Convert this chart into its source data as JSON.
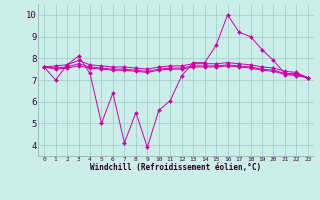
{
  "xlabel": "Windchill (Refroidissement éolien,°C)",
  "xlim": [
    -0.5,
    23.5
  ],
  "ylim": [
    3.5,
    10.5
  ],
  "yticks": [
    4,
    5,
    6,
    7,
    8,
    9,
    10
  ],
  "background_color": "#cceee8",
  "line_color": "#cc00aa",
  "line1_x": [
    0,
    1,
    2,
    3,
    4,
    5,
    6,
    7,
    8,
    9,
    10,
    11,
    12,
    13,
    14,
    15,
    16,
    17,
    18,
    19,
    20,
    21,
    22,
    23
  ],
  "line1_y": [
    7.6,
    7.0,
    7.7,
    8.1,
    7.3,
    5.0,
    6.4,
    4.1,
    5.5,
    3.9,
    5.6,
    6.05,
    7.2,
    7.8,
    7.8,
    8.6,
    10.0,
    9.2,
    9.0,
    8.4,
    7.9,
    7.3,
    7.3,
    7.1
  ],
  "line2_x": [
    0,
    1,
    2,
    3,
    4,
    5,
    6,
    7,
    8,
    9,
    10,
    11,
    12,
    13,
    14,
    15,
    16,
    17,
    18,
    19,
    20,
    21,
    22,
    23
  ],
  "line2_y": [
    7.6,
    7.65,
    7.7,
    7.9,
    7.7,
    7.65,
    7.6,
    7.6,
    7.55,
    7.5,
    7.6,
    7.65,
    7.65,
    7.75,
    7.75,
    7.75,
    7.8,
    7.75,
    7.7,
    7.6,
    7.55,
    7.4,
    7.35,
    7.1
  ],
  "line3_x": [
    0,
    1,
    2,
    3,
    4,
    5,
    6,
    7,
    8,
    9,
    10,
    11,
    12,
    13,
    14,
    15,
    16,
    17,
    18,
    19,
    20,
    21,
    22,
    23
  ],
  "line3_y": [
    7.6,
    7.55,
    7.6,
    7.75,
    7.6,
    7.55,
    7.5,
    7.5,
    7.45,
    7.4,
    7.5,
    7.55,
    7.55,
    7.65,
    7.65,
    7.65,
    7.7,
    7.65,
    7.6,
    7.5,
    7.45,
    7.3,
    7.25,
    7.1
  ],
  "line4_x": [
    0,
    1,
    2,
    3,
    4,
    5,
    6,
    7,
    8,
    9,
    10,
    11,
    12,
    13,
    14,
    15,
    16,
    17,
    18,
    19,
    20,
    21,
    22,
    23
  ],
  "line4_y": [
    7.6,
    7.5,
    7.55,
    7.65,
    7.55,
    7.5,
    7.45,
    7.45,
    7.4,
    7.35,
    7.45,
    7.5,
    7.5,
    7.6,
    7.6,
    7.6,
    7.65,
    7.6,
    7.55,
    7.45,
    7.4,
    7.25,
    7.2,
    7.1
  ],
  "xtick_labels": [
    "0",
    "1",
    "2",
    "3",
    "4",
    "5",
    "6",
    "7",
    "8",
    "9",
    "10",
    "11",
    "12",
    "13",
    "14",
    "15",
    "16",
    "17",
    "18",
    "19",
    "20",
    "21",
    "22",
    "23"
  ]
}
